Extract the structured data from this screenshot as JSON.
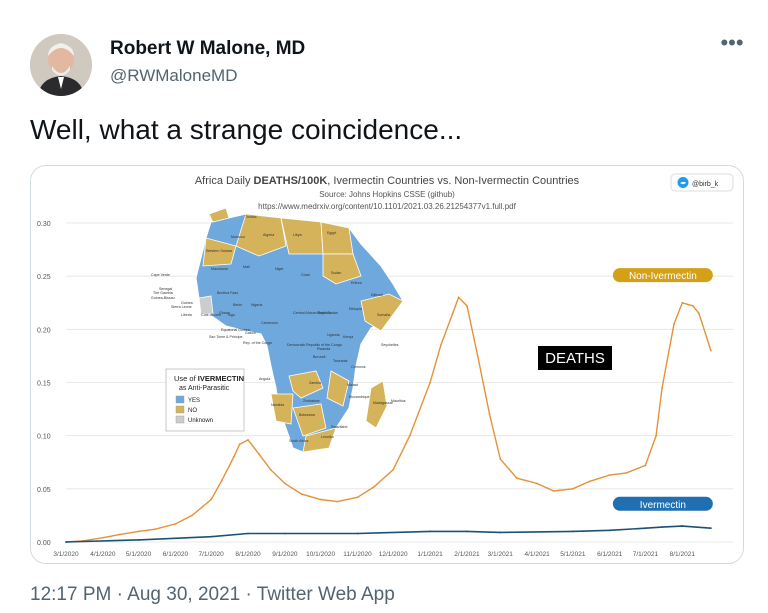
{
  "tweet": {
    "author_name": "Robert W Malone, MD",
    "author_handle": "@RWMaloneMD",
    "text": "Well, what a strange coincidence...",
    "time": "12:17 PM",
    "date": "Aug 30, 2021",
    "client": "Twitter Web App",
    "separator": " · "
  },
  "icons": {
    "more": "more-dots-icon",
    "twitter": "twitter-bird-icon"
  },
  "media": {
    "title_pre": "Africa Daily ",
    "title_bold": "DEATHS/100K",
    "title_post": ", Ivermectin Countries vs. Non-Ivermectin Countries",
    "source": "Source: Johns Hopkins CSSE (github)",
    "url": "https://www.medrxiv.org/content/10.1101/2021.03.26.21254377v1.full.pdf",
    "credit": "@birb_k",
    "deaths_label": "DEATHS",
    "legend_title_pre": "Use of ",
    "legend_title_bold": "IVERMECTIN",
    "legend_title_post": "as Anti-Parasitic",
    "legend_items": [
      {
        "label": "YES",
        "color": "#6fa8dc"
      },
      {
        "label": "NO",
        "color": "#d4b35a"
      },
      {
        "label": "Unknown",
        "color": "#cccccc"
      }
    ],
    "map_labels": [
      "Tunisia",
      "Morocco",
      "Algeria",
      "Libya",
      "Egypt",
      "Western Sahara",
      "Mauritania",
      "Mali",
      "Niger",
      "Chad",
      "Sudan",
      "Cape Verde",
      "Senegal",
      "The Gambia",
      "Guinea-Bissau",
      "Guinea",
      "Burkina Faso",
      "Sierra Leone",
      "Liberia",
      "Cote d'Ivoire",
      "Ghana",
      "Togo",
      "Benin",
      "Nigeria",
      "Cameroon",
      "Central African Republic",
      "South Sudan",
      "Ethiopia",
      "Eritrea",
      "Djibouti",
      "Somalia",
      "Equatorial Guinea",
      "Sao Tome & Principe",
      "Gabon",
      "Rep. of the Congo",
      "Democratic Republic of the Congo",
      "Uganda",
      "Kenya",
      "Rwanda",
      "Burundi",
      "Tanzania",
      "Seychelles",
      "Comoros",
      "Angola",
      "Zambia",
      "Malawi",
      "Mozambique",
      "Madagascar",
      "Mauritius",
      "Namibia",
      "Zimbabwe",
      "Botswana",
      "Swaziland",
      "South Africa",
      "Lesotho"
    ]
  },
  "chart_data": {
    "type": "line",
    "title": "Africa Daily DEATHS/100K, Ivermectin Countries vs. Non-Ivermectin Countries",
    "xlabel": "",
    "ylabel": "",
    "ylim": [
      0,
      0.3
    ],
    "yticks": [
      "0.00",
      "0.05",
      "0.10",
      "0.15",
      "0.20",
      "0.25",
      "0.30"
    ],
    "x_ticks": [
      "3/1/2020",
      "4/1/2020",
      "5/1/2020",
      "6/1/2020",
      "7/1/2020",
      "8/1/2020",
      "9/1/2020",
      "10/1/2020",
      "11/1/2020",
      "12/1/2020",
      "1/1/2021",
      "2/1/2021",
      "3/1/2021",
      "4/1/2021",
      "5/1/2021",
      "6/1/2021",
      "7/1/2021",
      "8/1/2021"
    ],
    "grid": true,
    "series": [
      {
        "name": "Non-Ivermectin",
        "color": "#e69138",
        "label_color": "#d4a017",
        "x": [
          "2020-03-01",
          "2020-03-15",
          "2020-04-01",
          "2020-04-15",
          "2020-05-01",
          "2020-05-15",
          "2020-06-01",
          "2020-06-15",
          "2020-07-01",
          "2020-07-10",
          "2020-07-20",
          "2020-07-25",
          "2020-08-01",
          "2020-08-10",
          "2020-08-20",
          "2020-09-01",
          "2020-09-15",
          "2020-10-01",
          "2020-10-15",
          "2020-11-01",
          "2020-11-15",
          "2020-12-01",
          "2020-12-15",
          "2021-01-01",
          "2021-01-10",
          "2021-01-20",
          "2021-01-25",
          "2021-02-01",
          "2021-02-10",
          "2021-02-20",
          "2021-03-01",
          "2021-03-15",
          "2021-04-01",
          "2021-04-15",
          "2021-05-01",
          "2021-05-15",
          "2021-06-01",
          "2021-06-15",
          "2021-07-01",
          "2021-07-10",
          "2021-07-15",
          "2021-07-25",
          "2021-08-01",
          "2021-08-10",
          "2021-08-15",
          "2021-08-25"
        ],
        "values": [
          0.0,
          0.001,
          0.004,
          0.007,
          0.01,
          0.012,
          0.017,
          0.025,
          0.04,
          0.058,
          0.08,
          0.092,
          0.096,
          0.083,
          0.068,
          0.055,
          0.045,
          0.04,
          0.038,
          0.042,
          0.052,
          0.068,
          0.1,
          0.15,
          0.185,
          0.215,
          0.23,
          0.222,
          0.175,
          0.12,
          0.078,
          0.06,
          0.055,
          0.048,
          0.05,
          0.057,
          0.063,
          0.065,
          0.072,
          0.1,
          0.145,
          0.205,
          0.225,
          0.222,
          0.215,
          0.18
        ]
      },
      {
        "name": "Ivermectin",
        "color": "#1a5276",
        "label_color": "#1f6fb2",
        "x": [
          "2020-03-01",
          "2020-05-01",
          "2020-07-01",
          "2020-08-01",
          "2020-09-01",
          "2020-11-01",
          "2021-01-01",
          "2021-02-01",
          "2021-03-01",
          "2021-05-01",
          "2021-06-01",
          "2021-07-01",
          "2021-07-15",
          "2021-08-01",
          "2021-08-25"
        ],
        "values": [
          0.0,
          0.002,
          0.005,
          0.008,
          0.008,
          0.008,
          0.01,
          0.01,
          0.009,
          0.01,
          0.011,
          0.013,
          0.014,
          0.015,
          0.013
        ]
      }
    ]
  }
}
